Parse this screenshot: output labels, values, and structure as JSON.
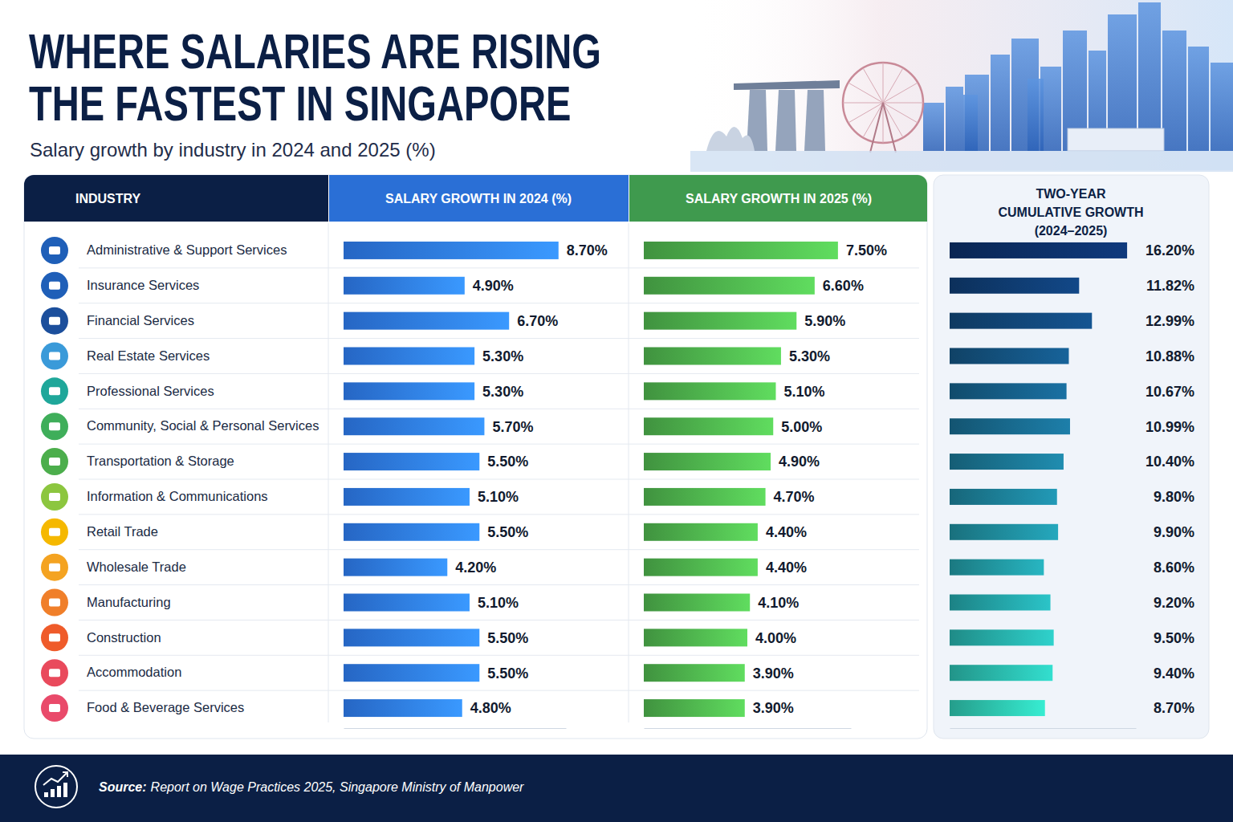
{
  "title": "WHERE SALARIES ARE RISING THE FASTEST IN SINGAPORE",
  "subtitle": "Salary growth by industry in 2024 and 2025 (%)",
  "source_label": "Source:",
  "source": "Report on Wage Practices 2025, Singapore Ministry of Manpower",
  "chart_data": [
    {
      "type": "bar",
      "orientation": "horizontal",
      "title": "SALARY GROWTH IN 2024 (%)",
      "y_label": "INDUSTRY",
      "categories": [
        "Administrative & Support Services",
        "Insurance Services",
        "Financial Services",
        "Real Estate Services",
        "Professional Services",
        "Community, Social & Personal Services",
        "Transportation & Storage",
        "Information & Communications",
        "Retail Trade",
        "Wholesale Trade",
        "Manufacturing",
        "Construction",
        "Accommodation",
        "Food & Beverage Services"
      ],
      "values": [
        8.7,
        4.9,
        6.7,
        5.3,
        5.3,
        5.7,
        5.5,
        5.1,
        5.5,
        4.2,
        5.1,
        5.5,
        5.5,
        4.8
      ],
      "value_labels": [
        "8.70%",
        "4.90%",
        "6.70%",
        "5.30%",
        "5.30%",
        "5.70%",
        "5.50%",
        "5.10%",
        "5.50%",
        "4.20%",
        "5.10%",
        "5.50%",
        "5.50%",
        "4.80%"
      ],
      "color": "#2a6fd6",
      "xlim": [
        0,
        9
      ],
      "data_labels": true,
      "tick_labels": "y"
    },
    {
      "type": "bar",
      "orientation": "horizontal",
      "title": "SALARY GROWTH IN 2025 (%)",
      "values": [
        7.5,
        6.6,
        5.9,
        5.3,
        5.1,
        5.0,
        4.9,
        4.7,
        4.4,
        4.4,
        4.1,
        4.0,
        3.9,
        3.9
      ],
      "value_labels": [
        "7.50%",
        "6.60%",
        "5.90%",
        "5.30%",
        "5.10%",
        "5.00%",
        "4.90%",
        "4.70%",
        "4.40%",
        "4.40%",
        "4.10%",
        "4.00%",
        "3.90%",
        "3.90%"
      ],
      "color": "#46a045",
      "xlim": [
        0,
        8
      ],
      "data_labels": true,
      "tick_labels": false
    },
    {
      "type": "bar",
      "orientation": "horizontal",
      "title": "TWO-YEAR CUMULATIVE GROWTH (2024–2025)",
      "values": [
        16.2,
        11.82,
        12.99,
        10.88,
        10.67,
        10.99,
        10.4,
        9.8,
        9.9,
        8.6,
        9.2,
        9.5,
        9.4,
        8.7
      ],
      "value_labels": [
        "16.20%",
        "11.82%",
        "12.99%",
        "10.88%",
        "10.67%",
        "10.99%",
        "10.40%",
        "9.80%",
        "9.90%",
        "8.60%",
        "9.20%",
        "9.50%",
        "9.40%",
        "8.70%"
      ],
      "colors": [
        "#0b2a5b",
        "#0d3463",
        "#0f3e6a",
        "#114870",
        "#135276",
        "#155c7b",
        "#176680",
        "#197085",
        "#1b7a89",
        "#1d848d",
        "#1f8e91",
        "#229894",
        "#25a296",
        "#28ac98"
      ],
      "xlim": [
        0,
        17
      ],
      "data_labels": true,
      "tick_labels": false
    }
  ]
}
